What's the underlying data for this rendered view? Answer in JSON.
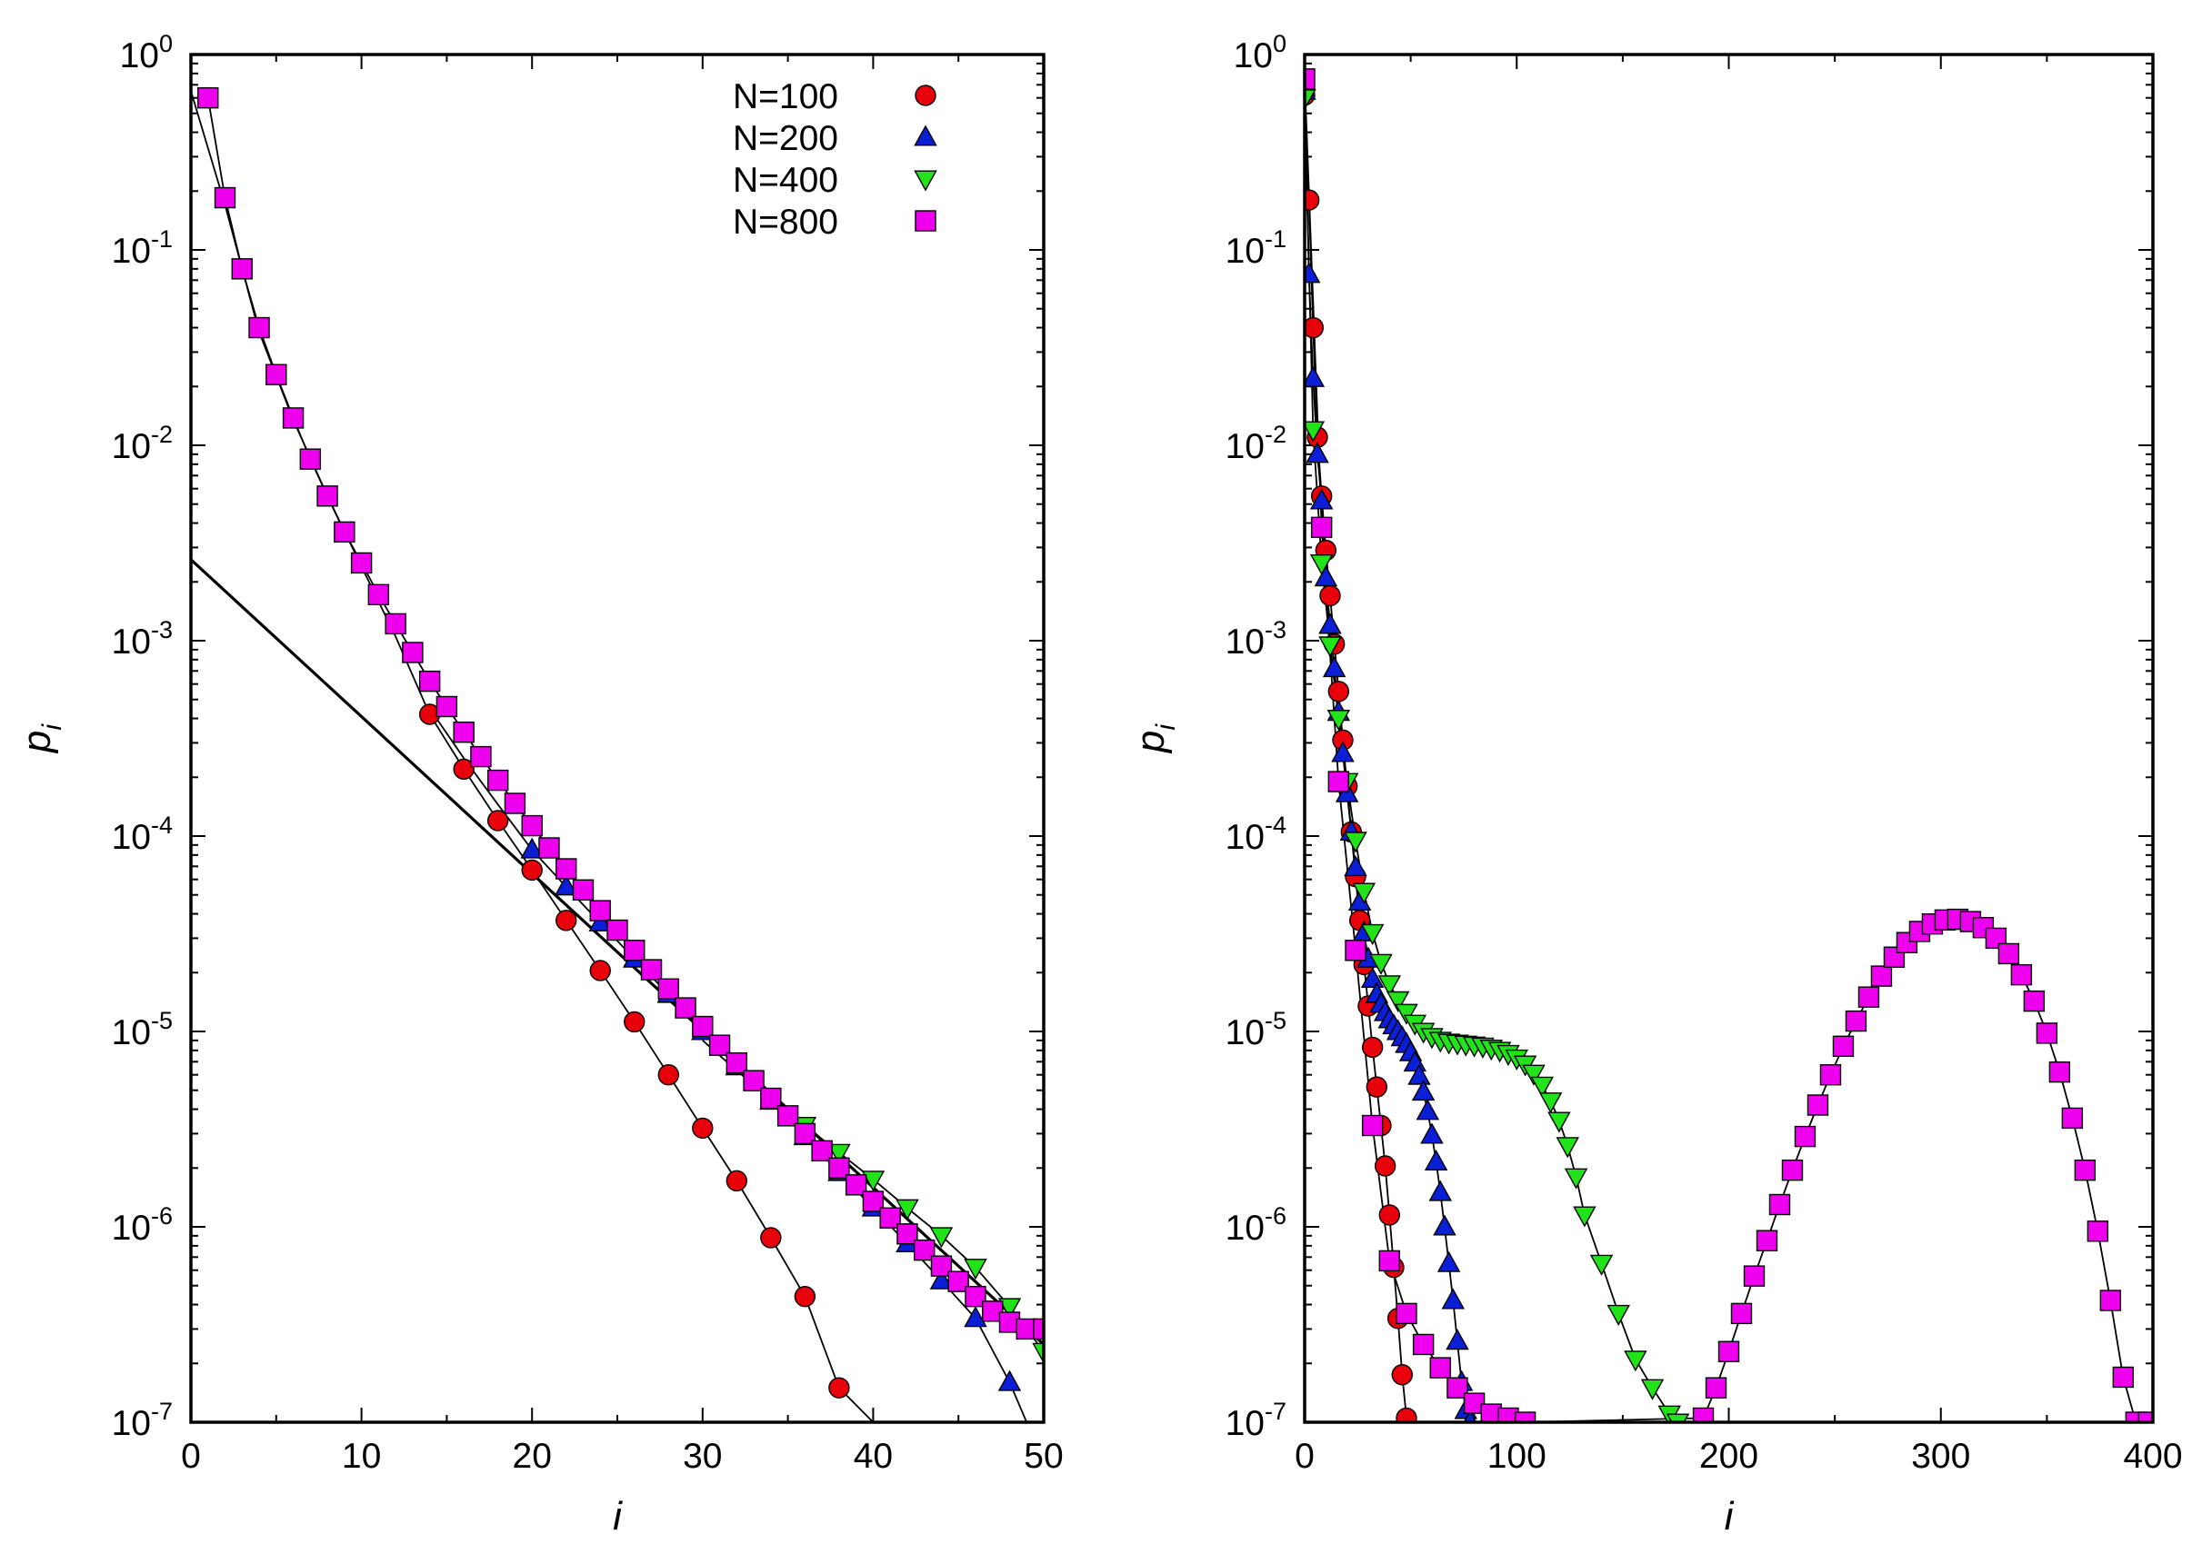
{
  "colors": {
    "N100": "#e8000b",
    "N200": "#0a1fd6",
    "N400": "#22e21a",
    "N800": "#ee00ee"
  },
  "chart_data": [
    {
      "type": "scatter",
      "panel": "left",
      "title": "",
      "xlabel": "i",
      "ylabel": "p",
      "ylabel_subscript": "i",
      "yscale": "log",
      "xlim": [
        0,
        50
      ],
      "ylim": [
        1e-07,
        1
      ],
      "xticks": [
        "0",
        "10",
        "20",
        "30",
        "40",
        "50"
      ],
      "yticks": [
        {
          "base": "10",
          "exp": "0"
        },
        {
          "base": "10",
          "exp": "-1"
        },
        {
          "base": "10",
          "exp": "-2"
        },
        {
          "base": "10",
          "exp": "-3"
        },
        {
          "base": "10",
          "exp": "-4"
        },
        {
          "base": "10",
          "exp": "-5"
        },
        {
          "base": "10",
          "exp": "-6"
        },
        {
          "base": "10",
          "exp": "-7"
        }
      ],
      "legend": {
        "placement": "top-center",
        "entries": [
          {
            "label": "N=100",
            "marker": "circle",
            "color": "#e8000b"
          },
          {
            "label": "N=200",
            "marker": "triangle-up",
            "color": "#0a1fd6"
          },
          {
            "label": "N=400",
            "marker": "triangle-down",
            "color": "#22e21a"
          },
          {
            "label": "N=800",
            "marker": "square",
            "color": "#ee00ee"
          }
        ]
      },
      "reference_line": {
        "x": [
          0,
          50
        ],
        "y": [
          0.0026,
          2.5e-07
        ],
        "style": "solid thick"
      },
      "series": [
        {
          "name": "N=100",
          "marker": "circle",
          "color": "#e8000b",
          "x": [
            14,
            16,
            18,
            20,
            22,
            24,
            26,
            28,
            30,
            32,
            34,
            36,
            38
          ],
          "y": [
            0.00042,
            0.00022,
            0.00012,
            6.7e-05,
            3.7e-05,
            2.05e-05,
            1.12e-05,
            6e-06,
            3.2e-06,
            1.72e-06,
            8.8e-07,
            4.4e-07,
            1.5e-07
          ],
          "fit_x": [
            0,
            2,
            4,
            6,
            8,
            10,
            12,
            14,
            16,
            18,
            20,
            22,
            24,
            26,
            28,
            30,
            32,
            34,
            36,
            38,
            40
          ],
          "fit_y": [
            0.65,
            0.17,
            0.038,
            0.0135,
            0.0055,
            0.0024,
            0.00105,
            0.00042,
            0.00022,
            0.00012,
            6.7e-05,
            3.7e-05,
            2.05e-05,
            1.12e-05,
            6e-06,
            3.2e-06,
            1.72e-06,
            8.8e-07,
            4.4e-07,
            1.5e-07,
            1e-07
          ]
        },
        {
          "name": "N=200",
          "marker": "triangle-up",
          "color": "#0a1fd6",
          "x": [
            20,
            22,
            24,
            26,
            28,
            30,
            32,
            34,
            36,
            38,
            40,
            42,
            44,
            46,
            48
          ],
          "y": [
            8.5e-05,
            5.5e-05,
            3.6e-05,
            2.35e-05,
            1.55e-05,
            1e-05,
            6.6e-06,
            4.4e-06,
            2.9e-06,
            1.9e-06,
            1.25e-06,
            8.2e-07,
            5.3e-07,
            3.4e-07,
            1.6e-07
          ],
          "fit_x": [
            14,
            16,
            18,
            20,
            22,
            24,
            26,
            28,
            30,
            32,
            34,
            36,
            38,
            40,
            42,
            44,
            46,
            48,
            49
          ],
          "fit_y": [
            0.00045,
            0.00025,
            0.000145,
            8.5e-05,
            5.5e-05,
            3.6e-05,
            2.35e-05,
            1.55e-05,
            1e-05,
            6.6e-06,
            4.4e-06,
            2.9e-06,
            1.9e-06,
            1.25e-06,
            8.2e-07,
            5.3e-07,
            3.4e-07,
            1.6e-07,
            1e-07
          ]
        },
        {
          "name": "N=400",
          "marker": "triangle-down",
          "color": "#22e21a",
          "x": [
            36,
            38,
            40,
            42,
            44,
            46,
            48,
            50
          ],
          "y": [
            3.3e-06,
            2.4e-06,
            1.75e-06,
            1.25e-06,
            9e-07,
            6.2e-07,
            3.9e-07,
            2.3e-07
          ],
          "fit_x": [
            30,
            32,
            34,
            36,
            38,
            40,
            42,
            44,
            46,
            48,
            50
          ],
          "fit_y": [
            9e-06,
            6.3e-06,
            4.5e-06,
            3.3e-06,
            2.4e-06,
            1.75e-06,
            1.25e-06,
            9e-07,
            6.2e-07,
            3.9e-07,
            2.3e-07
          ]
        },
        {
          "name": "N=800",
          "marker": "square",
          "color": "#ee00ee",
          "x": [
            1,
            2,
            3,
            4,
            5,
            6,
            7,
            8,
            9,
            10,
            11,
            12,
            13,
            14,
            15,
            16,
            17,
            18,
            19,
            20,
            21,
            22,
            23,
            24,
            25,
            26,
            27,
            28,
            29,
            30,
            31,
            32,
            33,
            34,
            35,
            36,
            37,
            38,
            39,
            40,
            41,
            42,
            43,
            44,
            45,
            46,
            47,
            48,
            49,
            50
          ],
          "y": [
            0.6,
            0.185,
            0.08,
            0.04,
            0.023,
            0.0138,
            0.0085,
            0.0055,
            0.0036,
            0.0025,
            0.00172,
            0.00122,
            0.00087,
            0.00062,
            0.00046,
            0.00034,
            0.000255,
            0.000193,
            0.000147,
            0.000113,
            8.7e-05,
            6.8e-05,
            5.3e-05,
            4.15e-05,
            3.3e-05,
            2.6e-05,
            2.07e-05,
            1.65e-05,
            1.32e-05,
            1.06e-05,
            8.5e-06,
            6.9e-06,
            5.6e-06,
            4.55e-06,
            3.7e-06,
            3e-06,
            2.45e-06,
            2e-06,
            1.64e-06,
            1.35e-06,
            1.11e-06,
            9.2e-07,
            7.6e-07,
            6.3e-07,
            5.25e-07,
            4.4e-07,
            3.7e-07,
            3.25e-07,
            3e-07,
            3e-07
          ]
        }
      ]
    },
    {
      "type": "scatter",
      "panel": "right",
      "title": "",
      "xlabel": "i",
      "ylabel": "p",
      "ylabel_subscript": "i",
      "yscale": "log",
      "xlim": [
        0,
        400
      ],
      "ylim": [
        1e-07,
        1
      ],
      "xticks": [
        "0",
        "100",
        "200",
        "300",
        "400"
      ],
      "yticks": [
        {
          "base": "10",
          "exp": "0"
        },
        {
          "base": "10",
          "exp": "-1"
        },
        {
          "base": "10",
          "exp": "-2"
        },
        {
          "base": "10",
          "exp": "-3"
        },
        {
          "base": "10",
          "exp": "-4"
        },
        {
          "base": "10",
          "exp": "-5"
        },
        {
          "base": "10",
          "exp": "-6"
        },
        {
          "base": "10",
          "exp": "-7"
        }
      ],
      "series": [
        {
          "name": "N=100",
          "marker": "circle",
          "color": "#e8000b",
          "x": [
            0,
            2,
            4,
            6,
            8,
            10,
            12,
            14,
            16,
            18,
            20,
            22,
            24,
            26,
            28,
            30,
            32,
            34,
            36,
            38,
            40,
            42,
            44,
            46,
            48
          ],
          "y": [
            0.62,
            0.18,
            0.04,
            0.011,
            0.0055,
            0.0029,
            0.0017,
            0.00096,
            0.00055,
            0.00031,
            0.00018,
            0.000105,
            6.2e-05,
            3.7e-05,
            2.2e-05,
            1.35e-05,
            8.3e-06,
            5.2e-06,
            3.3e-06,
            2.05e-06,
            1.15e-06,
            6.2e-07,
            3.4e-07,
            1.75e-07,
            1.05e-07
          ]
        },
        {
          "name": "N=200",
          "marker": "triangle-up",
          "color": "#0a1fd6",
          "x": [
            0,
            2,
            4,
            6,
            8,
            10,
            12,
            14,
            16,
            18,
            20,
            22,
            24,
            26,
            28,
            30,
            32,
            34,
            36,
            38,
            40,
            42,
            44,
            46,
            48,
            50,
            52,
            54,
            56,
            58,
            60,
            62,
            64,
            66,
            68,
            70,
            72,
            74,
            76,
            78
          ],
          "y": [
            0.65,
            0.075,
            0.022,
            0.009,
            0.0052,
            0.0021,
            0.0012,
            0.00072,
            0.00043,
            0.000265,
            0.000165,
            0.000105,
            6.9e-05,
            4.6e-05,
            3.2e-05,
            2.35e-05,
            1.85e-05,
            1.55e-05,
            1.38e-05,
            1.25e-05,
            1.15e-05,
            1.07e-05,
            1e-05,
            9.3e-06,
            8.6e-06,
            7.8e-06,
            6.9e-06,
            5.9e-06,
            4.9e-06,
            3.9e-06,
            2.95e-06,
            2.15e-06,
            1.5e-06,
            1e-06,
            6.5e-07,
            4.2e-07,
            2.6e-07,
            1.6e-07,
            1.15e-07,
            1e-07
          ]
        },
        {
          "name": "N=400",
          "marker": "triangle-down",
          "color": "#22e21a",
          "x": [
            0,
            4,
            8,
            12,
            16,
            20,
            24,
            28,
            32,
            36,
            40,
            44,
            48,
            52,
            56,
            60,
            64,
            68,
            72,
            76,
            80,
            84,
            88,
            92,
            96,
            100,
            104,
            108,
            112,
            116,
            120,
            124,
            128,
            132,
            140,
            148,
            156,
            164,
            172,
            176
          ],
          "y": [
            0.6,
            0.012,
            0.0025,
            0.00095,
            0.0004,
            0.00019,
            9.5e-05,
            5.2e-05,
            3.2e-05,
            2.25e-05,
            1.75e-05,
            1.45e-05,
            1.25e-05,
            1.1e-05,
            1e-05,
            9.4e-06,
            9e-06,
            8.8e-06,
            8.7e-06,
            8.6e-06,
            8.5e-06,
            8.4e-06,
            8.2e-06,
            8e-06,
            7.7e-06,
            7.3e-06,
            6.8e-06,
            6.1e-06,
            5.3e-06,
            4.4e-06,
            3.5e-06,
            2.6e-06,
            1.8e-06,
            1.15e-06,
            6.5e-07,
            3.6e-07,
            2.1e-07,
            1.5e-07,
            1.1e-07,
            1e-07
          ]
        },
        {
          "name": "N=800",
          "marker": "square",
          "color": "#ee00ee",
          "x": [
            0,
            8,
            16,
            24,
            32,
            40,
            48,
            56,
            64,
            72,
            80,
            88,
            96,
            104,
            188,
            194,
            200,
            206,
            212,
            218,
            224,
            230,
            236,
            242,
            248,
            254,
            260,
            266,
            272,
            278,
            284,
            290,
            296,
            302,
            308,
            314,
            320,
            326,
            332,
            338,
            344,
            350,
            356,
            362,
            368,
            374,
            380,
            386,
            392,
            398
          ],
          "y": [
            0.75,
            0.0038,
            0.00019,
            2.6e-05,
            3.3e-06,
            6.7e-07,
            3.6e-07,
            2.5e-07,
            1.9e-07,
            1.5e-07,
            1.25e-07,
            1.1e-07,
            1.05e-07,
            1e-07,
            1.05e-07,
            1.5e-07,
            2.3e-07,
            3.6e-07,
            5.6e-07,
            8.5e-07,
            1.3e-06,
            1.95e-06,
            2.9e-06,
            4.2e-06,
            6e-06,
            8.4e-06,
            1.13e-05,
            1.5e-05,
            1.92e-05,
            2.4e-05,
            2.85e-05,
            3.25e-05,
            3.55e-05,
            3.72e-05,
            3.75e-05,
            3.65e-05,
            3.4e-05,
            3e-05,
            2.5e-05,
            1.95e-05,
            1.43e-05,
            9.8e-06,
            6.2e-06,
            3.6e-06,
            1.95e-06,
            9.5e-07,
            4.2e-07,
            1.7e-07,
            1e-07,
            1e-07
          ]
        }
      ]
    }
  ]
}
